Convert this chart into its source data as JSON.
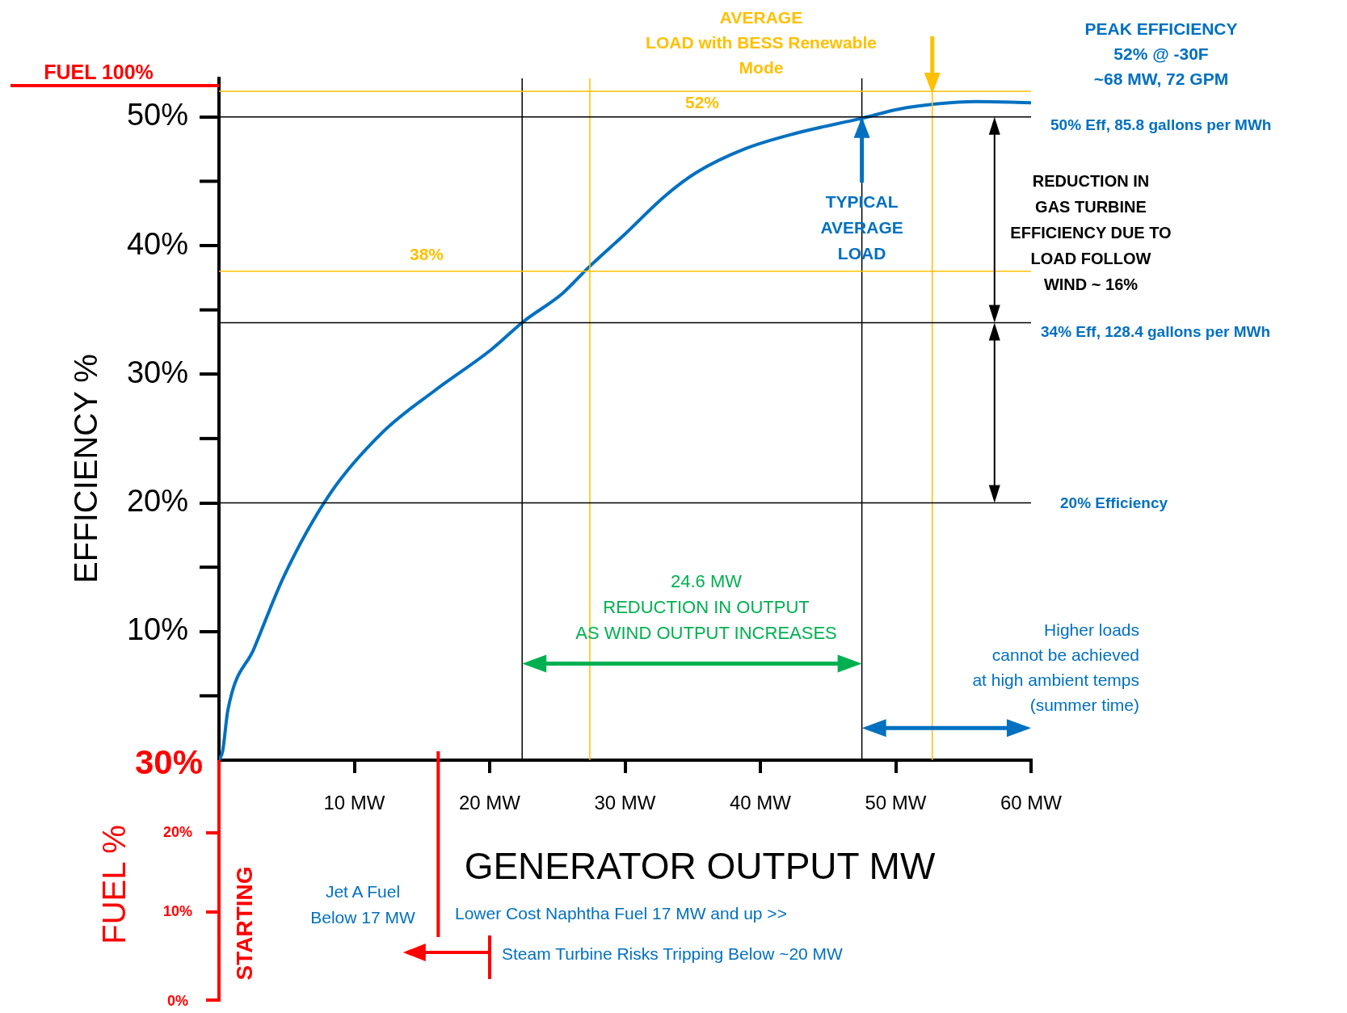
{
  "chart_data": {
    "type": "line",
    "xlabel": "GENERATOR OUTPUT MW",
    "ylabel": "EFFICIENCY %",
    "x": [
      0,
      0.27,
      0.66,
      2.6,
      4.8,
      8.2,
      12.1,
      15.9,
      20.1,
      22.5,
      25.4,
      27.3,
      30,
      33,
      35.3,
      38.8,
      42.5,
      47.5,
      50.2,
      52.9,
      55.9,
      60
    ],
    "series": [
      {
        "color": "#0070c0",
        "values": [
          0,
          0.7,
          3.9,
          8.7,
          14.3,
          20.7,
          25.5,
          28.7,
          31.9,
          34.1,
          36.3,
          38.3,
          40.9,
          43.9,
          45.7,
          47.5,
          48.7,
          49.9,
          50.6,
          51,
          51.2,
          51.1
        ]
      }
    ],
    "xlim": [
      0,
      60
    ],
    "ylim": [
      0,
      53
    ],
    "xticks": [
      {
        "value": 10,
        "label": "10 MW"
      },
      {
        "value": 20,
        "label": "20 MW"
      },
      {
        "value": 30,
        "label": "30 MW"
      },
      {
        "value": 40,
        "label": "40 MW"
      },
      {
        "value": 50,
        "label": "50 MW"
      },
      {
        "value": 60,
        "label": "60 MW"
      }
    ],
    "yticks": [
      {
        "value": 10,
        "label": "10%"
      },
      {
        "value": 20,
        "label": "20%"
      },
      {
        "value": 30,
        "label": "30%"
      },
      {
        "value": 40,
        "label": "40%"
      },
      {
        "value": 50,
        "label": "50%"
      }
    ],
    "grid": false,
    "legend": false,
    "ref_lines": [
      {
        "axis": "x",
        "value": 22.4,
        "color": "#000000"
      },
      {
        "axis": "x",
        "value": 47.5,
        "color": "#000000"
      },
      {
        "axis": "x",
        "value": 27.4,
        "color": "#ffc000"
      },
      {
        "axis": "x",
        "value": 52.7,
        "color": "#ffc000"
      },
      {
        "axis": "y",
        "value": 20,
        "color": "#000000"
      },
      {
        "axis": "y",
        "value": 34,
        "color": "#000000"
      },
      {
        "axis": "y",
        "value": 50,
        "color": "#000000"
      },
      {
        "axis": "y",
        "value": 38,
        "color": "#ffc000"
      },
      {
        "axis": "y",
        "value": 52,
        "color": "#ffc000"
      }
    ],
    "annotations": [
      "AVERAGE\nLOAD with BESS Renewable\nMode",
      "PEAK EFFICIENCY\n52% @ -30F\n~68 MW, 72 GPM",
      {
        "text": "TYPICAL\nAVERAGE\nLOAD",
        "x": 47.5,
        "y": 50
      },
      "REDUCTION IN\nGAS TURBINE\nEFFICIENCY DUE TO\nLOAD FOLLOW\nWIND ~ 16%",
      "24.6 MW\nREDUCTION IN OUTPUT\nAS WIND OUTPUT INCREASES",
      "Higher loads\ncannot be achieved\nat high ambient temps\n(summer time)",
      "Jet A Fuel\nBelow 17 MW",
      "Lower Cost Naphtha Fuel 17 MW and up >>",
      "Steam Turbine Risks Tripping Below ~20 MW",
      "FUEL 100%",
      "30%",
      "FUEL %",
      {
        "text": "STARTING",
        "x": 0,
        "y": 0
      },
      "20%",
      "10%",
      "0%",
      "52%",
      "38%",
      "50% Eff, 85.8 gallons per MWh",
      "34% Eff, 128.4 gallons per MWh",
      "20% Efficiency"
    ]
  }
}
